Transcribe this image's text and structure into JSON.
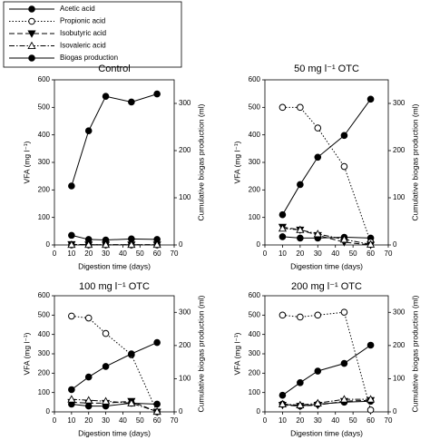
{
  "legend": {
    "entries": [
      {
        "name": "Acetic acid",
        "marker": "circle-filled",
        "dash": "solid"
      },
      {
        "name": "Propionic acid",
        "marker": "circle-open",
        "dash": "dotted"
      },
      {
        "name": "Isobutyric acid",
        "marker": "triangle-down-filled",
        "dash": "dashed"
      },
      {
        "name": "Isovaleric acid",
        "marker": "triangle-up-open",
        "dash": "dashdot"
      },
      {
        "name": "Biogas production",
        "marker": "circle-filled",
        "dash": "solid"
      }
    ]
  },
  "chart_data": [
    {
      "type": "line",
      "title": "Control",
      "xlabel": "Digestion time (days)",
      "ylabel": "VFA (mg l⁻¹)",
      "y2label": "Cumulative biogas production (ml)",
      "x": [
        10,
        20,
        30,
        45,
        60
      ],
      "xlim": [
        0,
        70
      ],
      "xticks": [
        0,
        10,
        20,
        30,
        40,
        50,
        60,
        70
      ],
      "ylim": [
        0,
        600
      ],
      "yticks": [
        0,
        100,
        200,
        300,
        400,
        500,
        600
      ],
      "y2lim": [
        0,
        350
      ],
      "y2ticks": [
        0,
        100,
        200,
        300
      ],
      "color": "#000000",
      "series": [
        {
          "values": [
            35,
            20,
            18,
            22,
            20
          ]
        },
        {
          "values": [
            0,
            0,
            0,
            0,
            0
          ]
        },
        {
          "values": [
            2,
            1,
            1,
            1,
            1
          ]
        },
        {
          "values": [
            1,
            1,
            1,
            1,
            1
          ]
        },
        {
          "values": [
            125,
            242,
            315,
            303,
            320
          ],
          "axis": "y2"
        }
      ]
    },
    {
      "type": "line",
      "title": "50 mg l⁻¹ OTC",
      "xlabel": "Digestion time (days)",
      "ylabel": "VFA (mg l⁻¹)",
      "y2label": "Cumulative biogas production (ml)",
      "x": [
        10,
        20,
        30,
        45,
        60
      ],
      "xlim": [
        0,
        70
      ],
      "xticks": [
        0,
        10,
        20,
        30,
        40,
        50,
        60,
        70
      ],
      "ylim": [
        0,
        600
      ],
      "yticks": [
        0,
        100,
        200,
        300,
        400,
        500,
        600
      ],
      "y2lim": [
        0,
        350
      ],
      "y2ticks": [
        0,
        100,
        200,
        300
      ],
      "color": "#000000",
      "series": [
        {
          "values": [
            30,
            25,
            25,
            28,
            25
          ]
        },
        {
          "values": [
            500,
            500,
            425,
            285,
            10
          ]
        },
        {
          "values": [
            65,
            55,
            35,
            10,
            0
          ]
        },
        {
          "values": [
            60,
            55,
            40,
            20,
            2
          ]
        },
        {
          "values": [
            64,
            128,
            186,
            232,
            309
          ],
          "axis": "y2"
        }
      ]
    },
    {
      "type": "line",
      "title": "100 mg l⁻¹ OTC",
      "xlabel": "Digestion time (days)",
      "ylabel": "VFA (mg l⁻¹)",
      "y2label": "Cumulative biogas production (ml)",
      "x": [
        10,
        20,
        30,
        45,
        60
      ],
      "xlim": [
        0,
        70
      ],
      "xticks": [
        0,
        10,
        20,
        30,
        40,
        50,
        60,
        70
      ],
      "ylim": [
        0,
        600
      ],
      "yticks": [
        0,
        100,
        200,
        300,
        400,
        500,
        600
      ],
      "y2lim": [
        0,
        350
      ],
      "y2ticks": [
        0,
        100,
        200,
        300
      ],
      "color": "#000000",
      "series": [
        {
          "values": [
            40,
            30,
            30,
            45,
            40
          ]
        },
        {
          "values": [
            495,
            485,
            405,
            295,
            0
          ]
        },
        {
          "values": [
            50,
            45,
            45,
            55,
            0
          ]
        },
        {
          "values": [
            65,
            60,
            55,
            45,
            2
          ]
        },
        {
          "values": [
            67,
            105,
            137,
            175,
            209
          ],
          "axis": "y2"
        }
      ]
    },
    {
      "type": "line",
      "title": "200 mg l⁻¹ OTC",
      "xlabel": "Digestion time (days)",
      "ylabel": "VFA (mg l⁻¹)",
      "y2label": "Cumulative biogas production (ml)",
      "x": [
        10,
        20,
        30,
        45,
        60
      ],
      "xlim": [
        0,
        70
      ],
      "xticks": [
        0,
        10,
        20,
        30,
        40,
        50,
        60,
        70
      ],
      "ylim": [
        0,
        600
      ],
      "yticks": [
        0,
        100,
        200,
        300,
        400,
        500,
        600
      ],
      "y2lim": [
        0,
        350
      ],
      "y2ticks": [
        0,
        100,
        200,
        300
      ],
      "color": "#000000",
      "series": [
        {
          "values": [
            40,
            30,
            40,
            50,
            55
          ]
        },
        {
          "values": [
            500,
            490,
            500,
            515,
            10
          ]
        },
        {
          "values": [
            35,
            30,
            35,
            55,
            60
          ]
        },
        {
          "values": [
            40,
            35,
            45,
            65,
            65
          ]
        },
        {
          "values": [
            50,
            88,
            123,
            146,
            201
          ],
          "axis": "y2"
        }
      ]
    }
  ]
}
